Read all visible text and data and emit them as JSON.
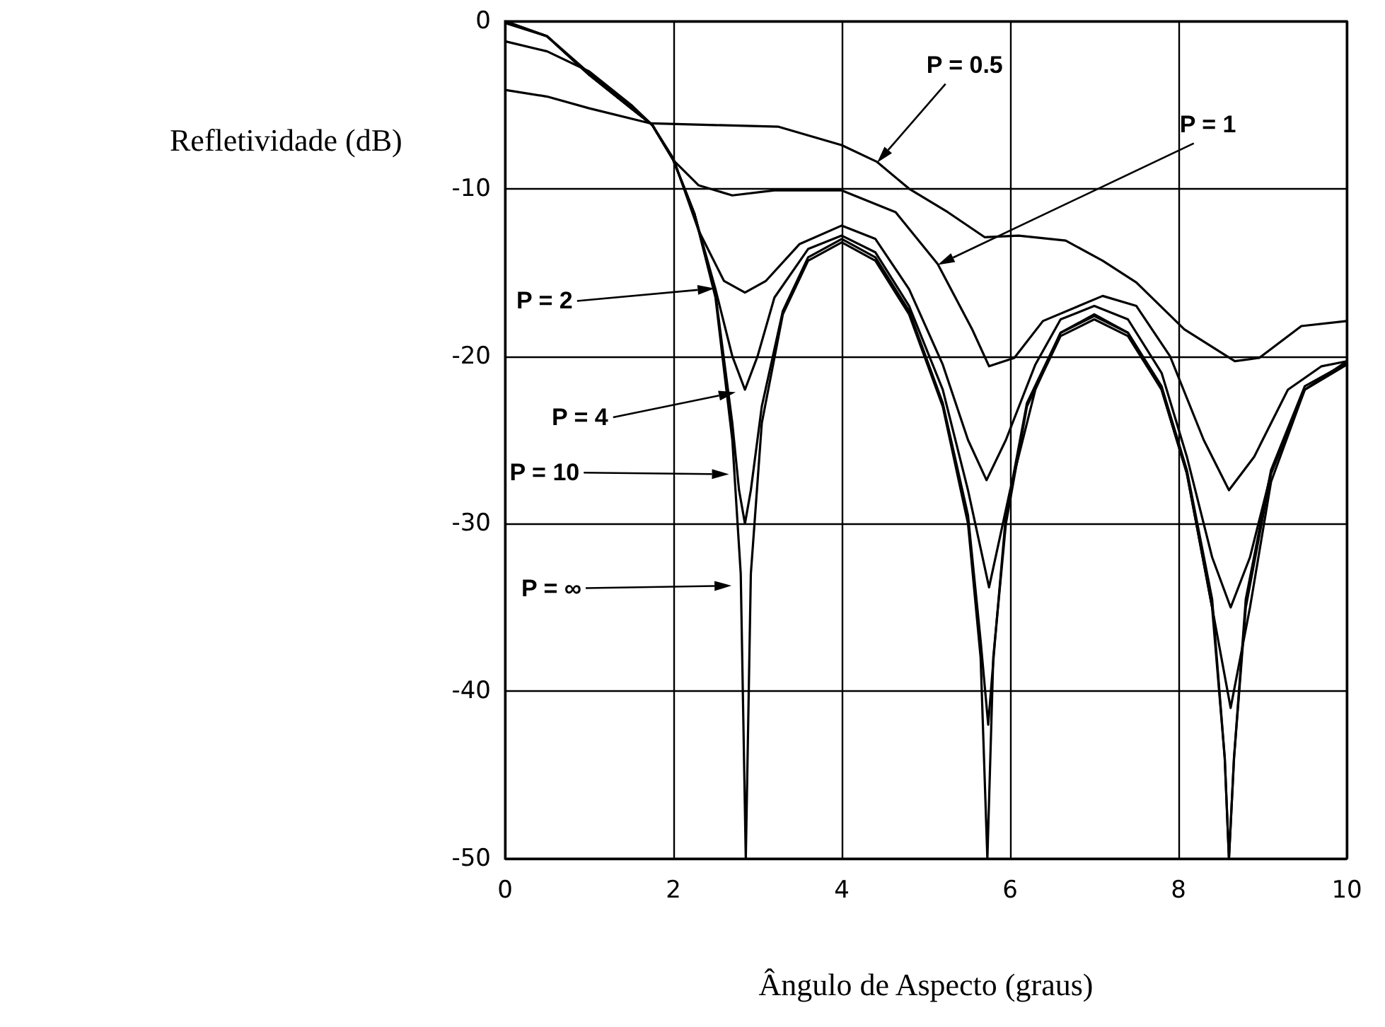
{
  "chart_data": {
    "type": "line",
    "xlabel": "Ângulo de Aspecto (graus)",
    "ylabel": "Refletividade (dB)",
    "xlim": [
      0,
      10
    ],
    "xticks": [
      0,
      2,
      4,
      6,
      8,
      10
    ],
    "ylim": [
      -50,
      0
    ],
    "yticks": [
      -50,
      -40,
      -30,
      -20,
      -10,
      0
    ],
    "grid": true,
    "marker": "none",
    "line_style": "solid",
    "series": [
      {
        "color": "#000000",
        "x": [
          0,
          0.5,
          1,
          1.73,
          2.5,
          3.25,
          4,
          4.42,
          4.8,
          5.26,
          5.7,
          6.1,
          6.66,
          7.1,
          7.5,
          8.07,
          8.67,
          8.96,
          9.46,
          10
        ],
        "values": [
          -4.1,
          -4.5,
          -5.2,
          -6.1,
          -6.2,
          -6.3,
          -7.4,
          -8.4,
          -10,
          -11.4,
          -12.9,
          -12.8,
          -13.1,
          -14.3,
          -15.6,
          -18.4,
          -20.3,
          -20.1,
          -18.2,
          -17.9
        ]
      },
      {
        "color": "#000000",
        "x": [
          0,
          0.5,
          1,
          1.5,
          1.75,
          2,
          2.3,
          2.7,
          3.2,
          4,
          4.64,
          5.14,
          5.55,
          5.75,
          6.05,
          6.39,
          7.1,
          7.5,
          7.9,
          8.3,
          8.6,
          8.9,
          9.3,
          9.7,
          10
        ],
        "values": [
          -1.2,
          -1.8,
          -3,
          -5,
          -6.2,
          -8.3,
          -9.8,
          -10.4,
          -10.1,
          -10.1,
          -11.4,
          -14.5,
          -18.4,
          -20.6,
          -20.1,
          -17.9,
          -16.4,
          -17,
          -20,
          -25,
          -28,
          -26,
          -22,
          -20.6,
          -20.3
        ]
      },
      {
        "color": "#000000",
        "x": [
          0,
          0.5,
          1,
          1.5,
          1.75,
          2,
          2.3,
          2.6,
          2.85,
          3.1,
          3.5,
          4,
          4.4,
          4.8,
          5.2,
          5.5,
          5.72,
          5.95,
          6.3,
          6.6,
          7,
          7.4,
          7.8,
          8.1,
          8.4,
          8.62,
          8.85,
          9.1,
          9.5,
          10
        ],
        "values": [
          -0.1,
          -0.9,
          -3.1,
          -5.1,
          -6.2,
          -8.2,
          -12.5,
          -15.5,
          -16.2,
          -15.5,
          -13.3,
          -12.2,
          -13,
          -16,
          -20.5,
          -25,
          -27.4,
          -25,
          -20.5,
          -17.8,
          -17,
          -17.8,
          -21,
          -26,
          -32,
          -35,
          -32,
          -27,
          -22,
          -20.5
        ]
      },
      {
        "color": "#000000",
        "x": [
          0,
          0.5,
          1,
          1.5,
          1.75,
          2,
          2.25,
          2.5,
          2.7,
          2.85,
          3,
          3.2,
          3.6,
          4,
          4.4,
          4.8,
          5.2,
          5.5,
          5.75,
          6,
          6.3,
          6.6,
          7,
          7.4,
          7.8,
          8.1,
          8.4,
          8.62,
          8.85,
          9.1,
          9.5,
          10
        ],
        "values": [
          0,
          -0.9,
          -3.2,
          -5.2,
          -6.2,
          -8.3,
          -11.5,
          -16,
          -20,
          -22,
          -20,
          -16.5,
          -13.6,
          -12.8,
          -13.8,
          -17,
          -22,
          -28,
          -33.8,
          -28,
          -22,
          -18.6,
          -17.5,
          -18.6,
          -22,
          -27,
          -35,
          -41,
          -35,
          -27.5,
          -22,
          -20.3
        ]
      },
      {
        "color": "#000000",
        "x": [
          0,
          0.5,
          1,
          1.5,
          1.75,
          2,
          2.25,
          2.5,
          2.7,
          2.78,
          2.85,
          2.92,
          3.05,
          3.3,
          3.6,
          4,
          4.4,
          4.8,
          5.2,
          5.5,
          5.65,
          5.74,
          5.82,
          5.95,
          6.2,
          6.6,
          7,
          7.4,
          7.8,
          8.1,
          8.4,
          8.55,
          8.6,
          8.66,
          8.8,
          9.1,
          9.5,
          10
        ],
        "values": [
          0,
          -0.9,
          -3.2,
          -5.2,
          -6.2,
          -8.3,
          -11.5,
          -16.3,
          -24,
          -28,
          -30,
          -28,
          -23,
          -17.3,
          -14.1,
          -13,
          -14.1,
          -17.3,
          -22.8,
          -29.5,
          -37,
          -42,
          -37,
          -29.5,
          -22.8,
          -18.6,
          -17.6,
          -18.6,
          -21.8,
          -26.8,
          -34.5,
          -44,
          -50,
          -44,
          -34.5,
          -26.8,
          -21.8,
          -20.4
        ]
      },
      {
        "color": "#000000",
        "x": [
          0,
          0.5,
          1,
          1.5,
          1.75,
          2,
          2.25,
          2.5,
          2.7,
          2.8,
          2.86,
          2.92,
          3.05,
          3.3,
          3.6,
          4,
          4.4,
          4.8,
          5.2,
          5.5,
          5.65,
          5.73,
          5.8,
          5.95,
          6.2,
          6.6,
          7,
          7.4,
          7.8,
          8.1,
          8.4,
          8.55,
          8.6,
          8.66,
          8.8,
          9.1,
          9.5,
          10
        ],
        "values": [
          0,
          -0.9,
          -3.2,
          -5.2,
          -6.2,
          -8.3,
          -11.5,
          -16.5,
          -25,
          -33,
          -50,
          -33,
          -24,
          -17.5,
          -14.3,
          -13.2,
          -14.3,
          -17.5,
          -23,
          -30,
          -38,
          -50,
          -38,
          -30,
          -23,
          -18.8,
          -17.8,
          -18.8,
          -22,
          -27,
          -35,
          -44,
          -50,
          -44,
          -35,
          -27,
          -22,
          -20.5
        ]
      }
    ],
    "annotations": [
      "P = 0.5",
      "P = 1",
      "P = 2",
      "P = 4",
      "P = 10",
      "P = ∞"
    ]
  }
}
